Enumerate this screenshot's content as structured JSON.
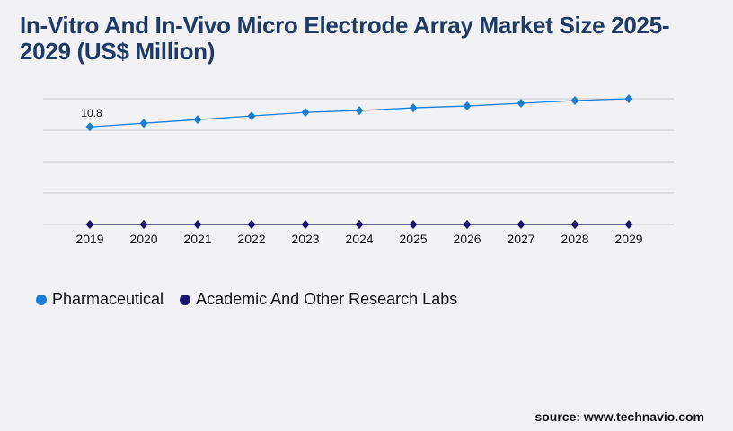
{
  "title": "In-Vitro And In-Vivo Micro Electrode Array Market Size 2025-2029 (US$ Million)",
  "source": "source: www.technavio.com",
  "chart_data": {
    "type": "line",
    "title": "In-Vitro And In-Vivo Micro Electrode Array Market Size 2025-2029 (US$ Million)",
    "xlabel": "",
    "ylabel": "",
    "categories": [
      "2019",
      "2020",
      "2021",
      "2022",
      "2023",
      "2024",
      "2025",
      "2026",
      "2027",
      "2028",
      "2029"
    ],
    "ylim": [
      0,
      13.9
    ],
    "grid": true,
    "legend_position": "bottom-left",
    "series": [
      {
        "name": "Pharmaceutical",
        "color": "#1a7fd4",
        "values": [
          10.8,
          11.2,
          11.6,
          12.0,
          12.4,
          12.6,
          12.9,
          13.1,
          13.4,
          13.7,
          13.9
        ]
      },
      {
        "name": "Academic And Other Research Labs",
        "color": "#1a1370",
        "values": [
          0,
          0,
          0,
          0,
          0,
          0,
          0,
          0,
          0,
          0,
          0
        ]
      }
    ],
    "annotations": [
      {
        "series": 0,
        "index": 0,
        "label": "10.8"
      }
    ]
  }
}
